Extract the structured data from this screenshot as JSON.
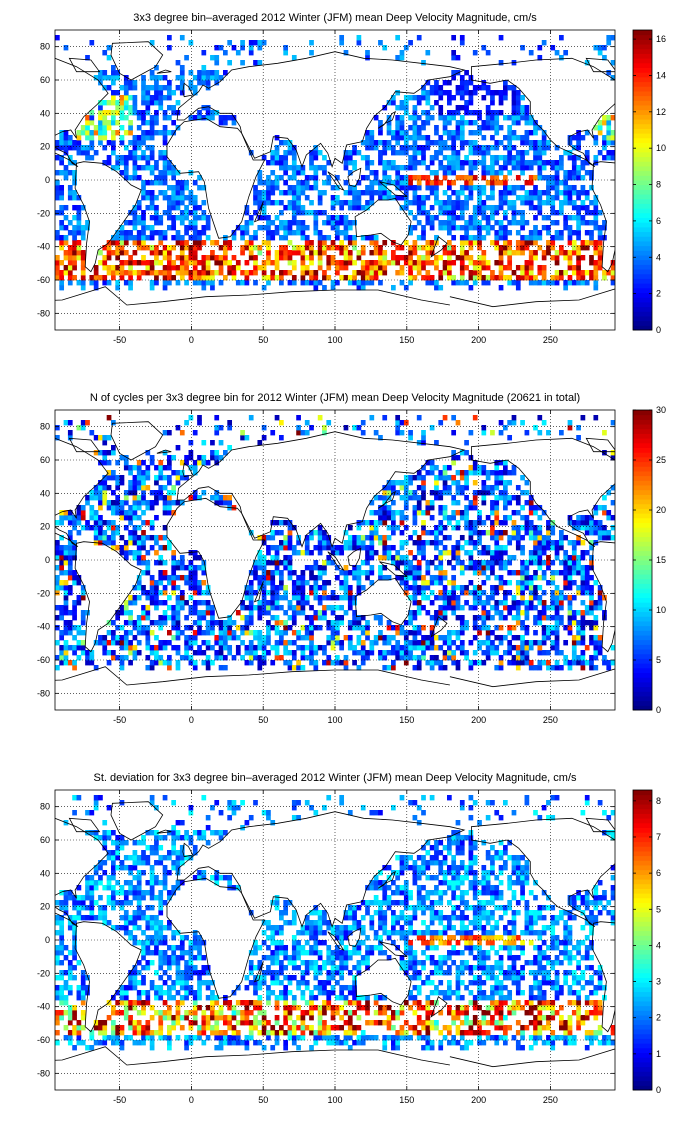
{
  "chart_data": [
    {
      "type": "heatmap",
      "title": "3x3 degree bin–averaged 2012 Winter (JFM) mean Deep Velocity Magnitude, cm/s",
      "xlabel": "",
      "ylabel": "",
      "xlim": [
        -95,
        295
      ],
      "ylim": [
        -90,
        90
      ],
      "xticks": [
        -50,
        0,
        50,
        100,
        150,
        200,
        250
      ],
      "yticks": [
        -80,
        -60,
        -40,
        -20,
        0,
        20,
        40,
        60,
        80
      ],
      "grid": true,
      "bin_size_deg": 3,
      "colormap": "jet",
      "colorbar": {
        "min": 0,
        "max": 16.5,
        "ticks": [
          0,
          2,
          4,
          6,
          8,
          10,
          12,
          14,
          16
        ]
      }
    },
    {
      "type": "heatmap",
      "title": "N of cycles per 3x3 degree bin for 2012 Winter (JFM) mean Deep Velocity Magnitude (20621 in total)",
      "xlabel": "",
      "ylabel": "",
      "xlim": [
        -95,
        295
      ],
      "ylim": [
        -90,
        90
      ],
      "xticks": [
        -50,
        0,
        50,
        100,
        150,
        200,
        250
      ],
      "yticks": [
        -80,
        -60,
        -40,
        -20,
        0,
        20,
        40,
        60,
        80
      ],
      "grid": true,
      "bin_size_deg": 3,
      "colormap": "jet",
      "colorbar": {
        "min": 0,
        "max": 30,
        "ticks": [
          0,
          5,
          10,
          15,
          20,
          25,
          30
        ]
      }
    },
    {
      "type": "heatmap",
      "title": "St. deviation for 3x3 degree bin–averaged 2012 Winter (JFM) mean Deep Velocity Magnitude, cm/s",
      "xlabel": "",
      "ylabel": "",
      "xlim": [
        -95,
        295
      ],
      "ylim": [
        -90,
        90
      ],
      "xticks": [
        -50,
        0,
        50,
        100,
        150,
        200,
        250
      ],
      "yticks": [
        -80,
        -60,
        -40,
        -20,
        0,
        20,
        40,
        60,
        80
      ],
      "grid": true,
      "bin_size_deg": 3,
      "colormap": "jet",
      "colorbar": {
        "min": 0,
        "max": 8.3,
        "ticks": [
          0,
          1,
          2,
          3,
          4,
          5,
          6,
          7,
          8
        ]
      }
    }
  ]
}
